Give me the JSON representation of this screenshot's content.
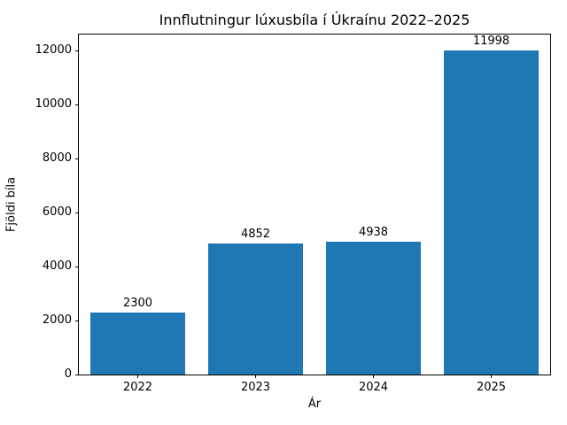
{
  "chart_data": {
    "type": "bar",
    "title": "Innflutningur lúxusbíla í Úkraínu 2022–2025",
    "xlabel": "Ár",
    "ylabel": "Fjöldi bíla",
    "categories": [
      "2022",
      "2023",
      "2024",
      "2025"
    ],
    "values": [
      2300,
      4852,
      4938,
      11998
    ],
    "value_labels": [
      "2300",
      "4852",
      "4938",
      "11998"
    ],
    "yticks": [
      0,
      2000,
      4000,
      6000,
      8000,
      10000,
      12000
    ],
    "ylim": [
      0,
      12598
    ],
    "bar_color": "#1f77b4",
    "axis_color": "#000000",
    "background_color": "#ffffff",
    "grid": false,
    "legend": null
  }
}
